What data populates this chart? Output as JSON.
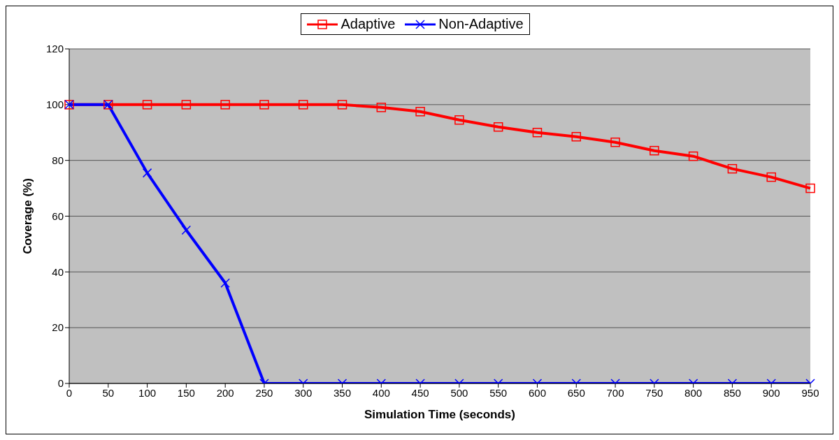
{
  "chart_data": {
    "type": "line",
    "xlabel": "Simulation Time (seconds)",
    "ylabel": "Coverage (%)",
    "categories": [
      "0",
      "50",
      "100",
      "150",
      "200",
      "250",
      "300",
      "350",
      "400",
      "450",
      "500",
      "550",
      "600",
      "650",
      "700",
      "750",
      "800",
      "850",
      "900",
      "950"
    ],
    "series": [
      {
        "name": "Adaptive",
        "color": "#ff0000",
        "marker": "square",
        "values": [
          100,
          100,
          100,
          100,
          100,
          100,
          100,
          100,
          99,
          97.5,
          94.5,
          92,
          90,
          88.5,
          86.5,
          83.5,
          81.5,
          77,
          74,
          70
        ]
      },
      {
        "name": "Non-Adaptive",
        "color": "#0000ff",
        "marker": "cross",
        "values": [
          100,
          100,
          75.5,
          55,
          36,
          0,
          0,
          0,
          0,
          0,
          0,
          0,
          0,
          0,
          0,
          0,
          0,
          0,
          0,
          0
        ]
      }
    ],
    "ylim": [
      0,
      120
    ],
    "yticks": [
      0,
      20,
      40,
      60,
      80,
      100,
      120
    ],
    "grid": "y",
    "legend": "top"
  }
}
